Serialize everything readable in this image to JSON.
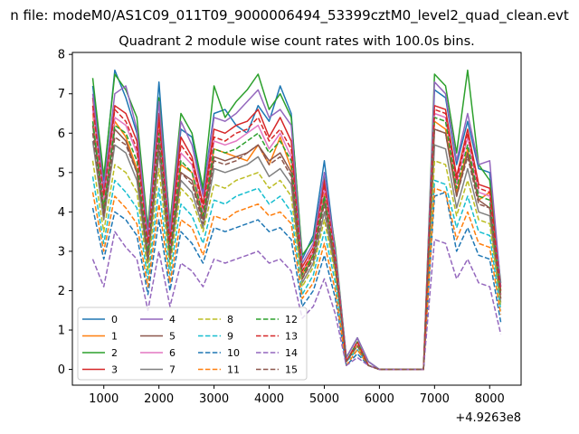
{
  "chart_data": {
    "type": "line",
    "suptitle": "n file: modeM0/AS1C09_011T09_9000006494_53399cztM0_level2_quad_clean.evt",
    "title": "Quadrant 2 module wise count rates with 100.0s bins.",
    "xlabel": "",
    "ylabel": "",
    "x_offset_label": "+4.9263e8",
    "xlim": [
      430,
      8570
    ],
    "ylim": [
      -0.4,
      8.05
    ],
    "xticks": [
      1000,
      2000,
      3000,
      4000,
      5000,
      6000,
      7000,
      8000
    ],
    "xtick_labels": [
      "1000",
      "2000",
      "3000",
      "4000",
      "5000",
      "6000",
      "7000",
      "8000"
    ],
    "yticks": [
      0,
      1,
      2,
      3,
      4,
      5,
      6,
      7,
      8
    ],
    "ytick_labels": [
      "0",
      "1",
      "2",
      "3",
      "4",
      "5",
      "6",
      "7",
      "8"
    ],
    "grid": false,
    "legend_position": "lower-left",
    "legend_columns": 4,
    "x": [
      800,
      1000,
      1200,
      1400,
      1600,
      1800,
      2000,
      2200,
      2400,
      2600,
      2800,
      3000,
      3200,
      3400,
      3600,
      3800,
      4000,
      4200,
      4400,
      4600,
      4800,
      5000,
      5200,
      5400,
      5600,
      5800,
      6000,
      6200,
      6400,
      6600,
      6800,
      7000,
      7200,
      7400,
      7600,
      7800,
      8000,
      8200
    ],
    "series": [
      {
        "name": "0",
        "color": "#1f77b4",
        "dash": "solid",
        "values": [
          7.2,
          4.8,
          7.6,
          6.9,
          6.0,
          3.5,
          7.3,
          3.6,
          6.1,
          5.9,
          4.5,
          6.5,
          6.6,
          6.2,
          6.0,
          6.7,
          6.3,
          7.2,
          6.5,
          2.8,
          3.4,
          5.3,
          3.0,
          0.3,
          0.8,
          0.2,
          0,
          0,
          0,
          0,
          0,
          7.1,
          6.9,
          5.2,
          6.3,
          5.1,
          5.0,
          2.1
        ]
      },
      {
        "name": "1",
        "color": "#ff7f0e",
        "dash": "solid",
        "values": [
          6.5,
          4.2,
          6.3,
          5.9,
          5.1,
          3.0,
          6.2,
          3.0,
          5.2,
          5.0,
          3.9,
          5.6,
          5.5,
          5.4,
          5.3,
          5.7,
          5.2,
          5.9,
          5.1,
          2.4,
          3.0,
          4.5,
          2.7,
          0.2,
          0.7,
          0.1,
          0,
          0,
          0,
          0,
          0,
          6.3,
          6.1,
          4.5,
          5.6,
          4.3,
          4.5,
          1.9
        ]
      },
      {
        "name": "2",
        "color": "#2ca02c",
        "dash": "solid",
        "values": [
          7.4,
          4.9,
          7.5,
          7.1,
          6.4,
          3.6,
          6.9,
          3.7,
          6.5,
          6.0,
          4.6,
          7.2,
          6.4,
          6.8,
          7.1,
          7.5,
          6.6,
          7.0,
          6.4,
          2.9,
          3.3,
          4.9,
          3.1,
          0.3,
          0.8,
          0.2,
          0,
          0,
          0,
          0,
          0,
          7.5,
          7.2,
          5.5,
          7.6,
          5.2,
          4.8,
          2.2
        ]
      },
      {
        "name": "3",
        "color": "#d62728",
        "dash": "solid",
        "values": [
          6.9,
          4.5,
          6.7,
          6.5,
          5.8,
          3.3,
          6.5,
          3.3,
          5.9,
          5.4,
          4.2,
          6.1,
          6.0,
          6.2,
          6.3,
          6.6,
          5.9,
          6.4,
          5.8,
          2.6,
          3.1,
          4.8,
          2.9,
          0.2,
          0.7,
          0.1,
          0,
          0,
          0,
          0,
          0,
          6.7,
          6.6,
          4.9,
          6.1,
          4.7,
          4.6,
          2.0
        ]
      },
      {
        "name": "4",
        "color": "#9467bd",
        "dash": "solid",
        "values": [
          7.0,
          4.6,
          7.0,
          7.2,
          6.1,
          3.4,
          6.8,
          3.5,
          6.3,
          5.7,
          4.4,
          6.4,
          6.3,
          6.5,
          6.8,
          7.1,
          6.4,
          6.6,
          6.2,
          2.7,
          3.2,
          5.0,
          3.0,
          0.3,
          0.8,
          0.2,
          0,
          0,
          0,
          0,
          0,
          7.3,
          7.0,
          5.3,
          6.5,
          5.2,
          5.3,
          2.1
        ]
      },
      {
        "name": "5",
        "color": "#8c564b",
        "dash": "solid",
        "values": [
          6.2,
          4.0,
          6.1,
          5.8,
          5.0,
          2.9,
          5.9,
          2.9,
          5.0,
          4.8,
          3.8,
          5.4,
          5.3,
          5.4,
          5.5,
          5.7,
          5.3,
          5.5,
          5.0,
          2.3,
          2.9,
          4.3,
          2.6,
          0.2,
          0.6,
          0.1,
          0,
          0,
          0,
          0,
          0,
          6.1,
          6.0,
          4.4,
          5.5,
          4.3,
          4.1,
          1.8
        ]
      },
      {
        "name": "6",
        "color": "#e377c2",
        "dash": "solid",
        "values": [
          6.6,
          4.3,
          6.4,
          6.2,
          5.5,
          3.1,
          6.1,
          3.1,
          5.5,
          5.2,
          4.0,
          5.8,
          5.7,
          5.8,
          6.0,
          6.2,
          5.6,
          6.0,
          5.4,
          2.5,
          3.0,
          4.6,
          2.8,
          0.2,
          0.7,
          0.1,
          0,
          0,
          0,
          0,
          0,
          6.5,
          6.4,
          4.7,
          5.9,
          4.5,
          4.4,
          1.9
        ]
      },
      {
        "name": "7",
        "color": "#7f7f7f",
        "dash": "solid",
        "values": [
          5.8,
          3.8,
          5.7,
          5.5,
          4.8,
          2.7,
          5.5,
          2.8,
          4.8,
          4.5,
          3.6,
          5.1,
          5.0,
          5.1,
          5.2,
          5.4,
          4.9,
          5.1,
          4.7,
          2.2,
          2.7,
          4.0,
          2.5,
          0.2,
          0.6,
          0.1,
          0,
          0,
          0,
          0,
          0,
          5.7,
          5.6,
          4.1,
          5.1,
          4.0,
          3.9,
          1.7
        ]
      },
      {
        "name": "8",
        "color": "#bcbd22",
        "dash": "dashed",
        "values": [
          5.3,
          3.5,
          5.2,
          5.0,
          4.5,
          2.5,
          5.1,
          2.6,
          4.6,
          4.3,
          3.5,
          4.7,
          4.6,
          4.8,
          4.9,
          5.0,
          4.6,
          4.8,
          4.4,
          2.1,
          2.6,
          3.8,
          2.4,
          0.2,
          0.6,
          0.1,
          0,
          0,
          0,
          0,
          0,
          5.3,
          5.2,
          3.9,
          4.8,
          3.8,
          3.7,
          1.6
        ]
      },
      {
        "name": "9",
        "color": "#17becf",
        "dash": "dashed",
        "values": [
          4.9,
          3.2,
          4.8,
          4.5,
          4.1,
          2.3,
          4.6,
          2.4,
          4.2,
          3.9,
          3.2,
          4.3,
          4.2,
          4.4,
          4.5,
          4.6,
          4.2,
          4.4,
          4.0,
          1.9,
          2.4,
          3.5,
          2.2,
          0.2,
          0.5,
          0.1,
          0,
          0,
          0,
          0,
          0,
          4.8,
          4.7,
          3.6,
          4.4,
          3.5,
          3.4,
          1.5
        ]
      },
      {
        "name": "10",
        "color": "#1f77b4",
        "dash": "dashed",
        "values": [
          4.1,
          2.8,
          4.0,
          3.8,
          3.4,
          1.9,
          3.8,
          2.0,
          3.5,
          3.2,
          2.7,
          3.6,
          3.5,
          3.6,
          3.7,
          3.8,
          3.5,
          3.6,
          3.3,
          1.6,
          2.0,
          2.9,
          1.8,
          0.1,
          0.4,
          0.1,
          0,
          0,
          0,
          0,
          0,
          4.4,
          4.5,
          3.0,
          3.6,
          2.9,
          2.8,
          1.2
        ]
      },
      {
        "name": "11",
        "color": "#ff7f0e",
        "dash": "dashed",
        "values": [
          4.5,
          3.0,
          4.4,
          4.1,
          3.7,
          2.1,
          4.2,
          2.2,
          3.8,
          3.6,
          2.9,
          3.9,
          3.8,
          4.0,
          4.1,
          4.2,
          3.9,
          4.0,
          3.7,
          1.8,
          2.2,
          3.2,
          2.0,
          0.1,
          0.5,
          0.1,
          0,
          0,
          0,
          0,
          0,
          4.6,
          4.5,
          3.3,
          4.0,
          3.2,
          3.1,
          1.4
        ]
      },
      {
        "name": "12",
        "color": "#2ca02c",
        "dash": "dashed",
        "values": [
          6.3,
          4.1,
          6.2,
          6.0,
          5.3,
          3.0,
          6.0,
          3.0,
          5.3,
          5.0,
          3.9,
          5.6,
          5.5,
          5.6,
          5.8,
          6.0,
          5.5,
          5.8,
          5.3,
          2.4,
          2.9,
          4.4,
          2.7,
          0.2,
          0.7,
          0.1,
          0,
          0,
          0,
          0,
          0,
          6.4,
          6.3,
          4.6,
          5.7,
          4.4,
          4.3,
          1.9
        ]
      },
      {
        "name": "13",
        "color": "#d62728",
        "dash": "dashed",
        "values": [
          6.7,
          4.4,
          6.6,
          6.3,
          5.6,
          3.2,
          6.3,
          3.2,
          5.7,
          5.3,
          4.1,
          5.9,
          5.8,
          6.0,
          6.1,
          6.4,
          5.8,
          6.1,
          5.6,
          2.5,
          3.0,
          4.7,
          2.8,
          0.2,
          0.7,
          0.1,
          0,
          0,
          0,
          0,
          0,
          6.6,
          6.5,
          4.8,
          6.0,
          4.6,
          4.5,
          2.0
        ]
      },
      {
        "name": "14",
        "color": "#9467bd",
        "dash": "dashed",
        "values": [
          2.8,
          2.1,
          3.5,
          3.1,
          2.8,
          1.5,
          3.0,
          1.6,
          2.7,
          2.5,
          2.1,
          2.8,
          2.7,
          2.8,
          2.9,
          3.0,
          2.7,
          2.8,
          2.5,
          1.3,
          1.6,
          2.3,
          1.4,
          0.1,
          0.3,
          0.1,
          0,
          0,
          0,
          0,
          0,
          3.3,
          3.2,
          2.3,
          2.8,
          2.2,
          2.1,
          0.9
        ]
      },
      {
        "name": "15",
        "color": "#8c564b",
        "dash": "dashed",
        "values": [
          6.0,
          3.9,
          5.9,
          5.7,
          5.0,
          2.8,
          5.7,
          2.8,
          5.0,
          4.7,
          3.7,
          5.3,
          5.2,
          5.3,
          5.5,
          5.7,
          5.2,
          5.4,
          4.9,
          2.3,
          2.8,
          4.2,
          2.6,
          0.2,
          0.6,
          0.1,
          0,
          0,
          0,
          0,
          0,
          6.1,
          6.0,
          4.4,
          5.4,
          4.2,
          4.1,
          1.8
        ]
      }
    ]
  }
}
